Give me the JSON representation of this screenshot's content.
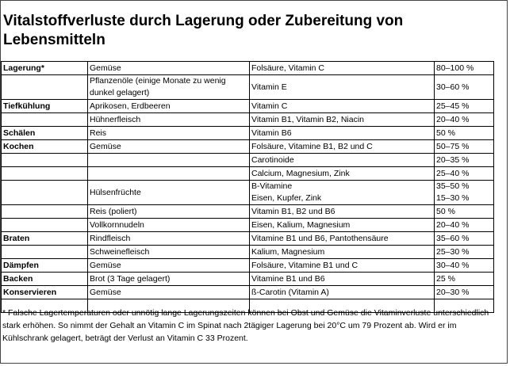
{
  "title": "Vitalstoffverluste durch Lagerung oder Zubereitung von Lebensmitteln",
  "table": {
    "rows": [
      [
        "Lagerung*",
        "Gemüse",
        "Folsäure, Vitamin C",
        "80–100 %"
      ],
      [
        null,
        "Pflanzenöle (einige Monate zu wenig dunkel gelagert)",
        "Vitamin E",
        "30–60 %"
      ],
      [
        "Tiefkühlung",
        "Aprikosen, Erdbeeren",
        "Vitamin C",
        "25–45 %"
      ],
      [
        null,
        "Hühnerfleisch",
        "Vitamin B1, Vitamin B2, Niacin",
        "20–40 %"
      ],
      [
        "Schälen",
        "Reis",
        "Vitamin B6",
        "50 %"
      ],
      [
        "Kochen",
        "Gemüse",
        "Folsäure, Vitamine B1, B2 und C",
        "50–75 %"
      ],
      [
        null,
        null,
        "Carotinoide",
        "20–35 %"
      ],
      [
        null,
        null,
        "Calcium, Magnesium, Zink",
        "25–40 %"
      ],
      [
        null,
        "Hülsenfrüchte",
        [
          "B-Vitamine",
          "Eisen, Kupfer, Zink"
        ],
        [
          "35–50 %",
          "15–30 %"
        ]
      ],
      [
        null,
        "Reis (poliert)",
        "Vitamin B1, B2 und B6",
        "50 %"
      ],
      [
        null,
        "Vollkornnudeln",
        "Eisen, Kalium, Magnesium",
        "20–40 %"
      ],
      [
        "Braten",
        "Rindfleisch",
        "Vitamine B1 und B6, Pantothensäure",
        "35–60 %"
      ],
      [
        null,
        "Schweinefleisch",
        "Kalium, Magnesium",
        "25–30 %"
      ],
      [
        "Dämpfen",
        "Gemüse",
        "Folsäure, Vitamine B1 und C",
        "30–40 %"
      ],
      [
        "Backen",
        "Brot (3 Tage gelagert)",
        "Vitamine B1 und B6",
        "25 %"
      ],
      [
        "Konservieren",
        "Gemüse",
        "ß-Carotin (Vitamin A)",
        "20–30 %"
      ]
    ]
  },
  "footnote": "* Falsche Lagertemperaturen oder unnötig lange Lagerungszeiten können bei Obst und Gemüse die Vitaminverluste unterschiedlich stark erhöhen. So nimmt der Gehalt an Vitamin C im Spinat nach 2tägiger Lagerung bei 20°C um 79 Prozent ab. Wird er im Kühlschrank gelagert, beträgt der Verlust an Vitamin C 33 Prozent."
}
